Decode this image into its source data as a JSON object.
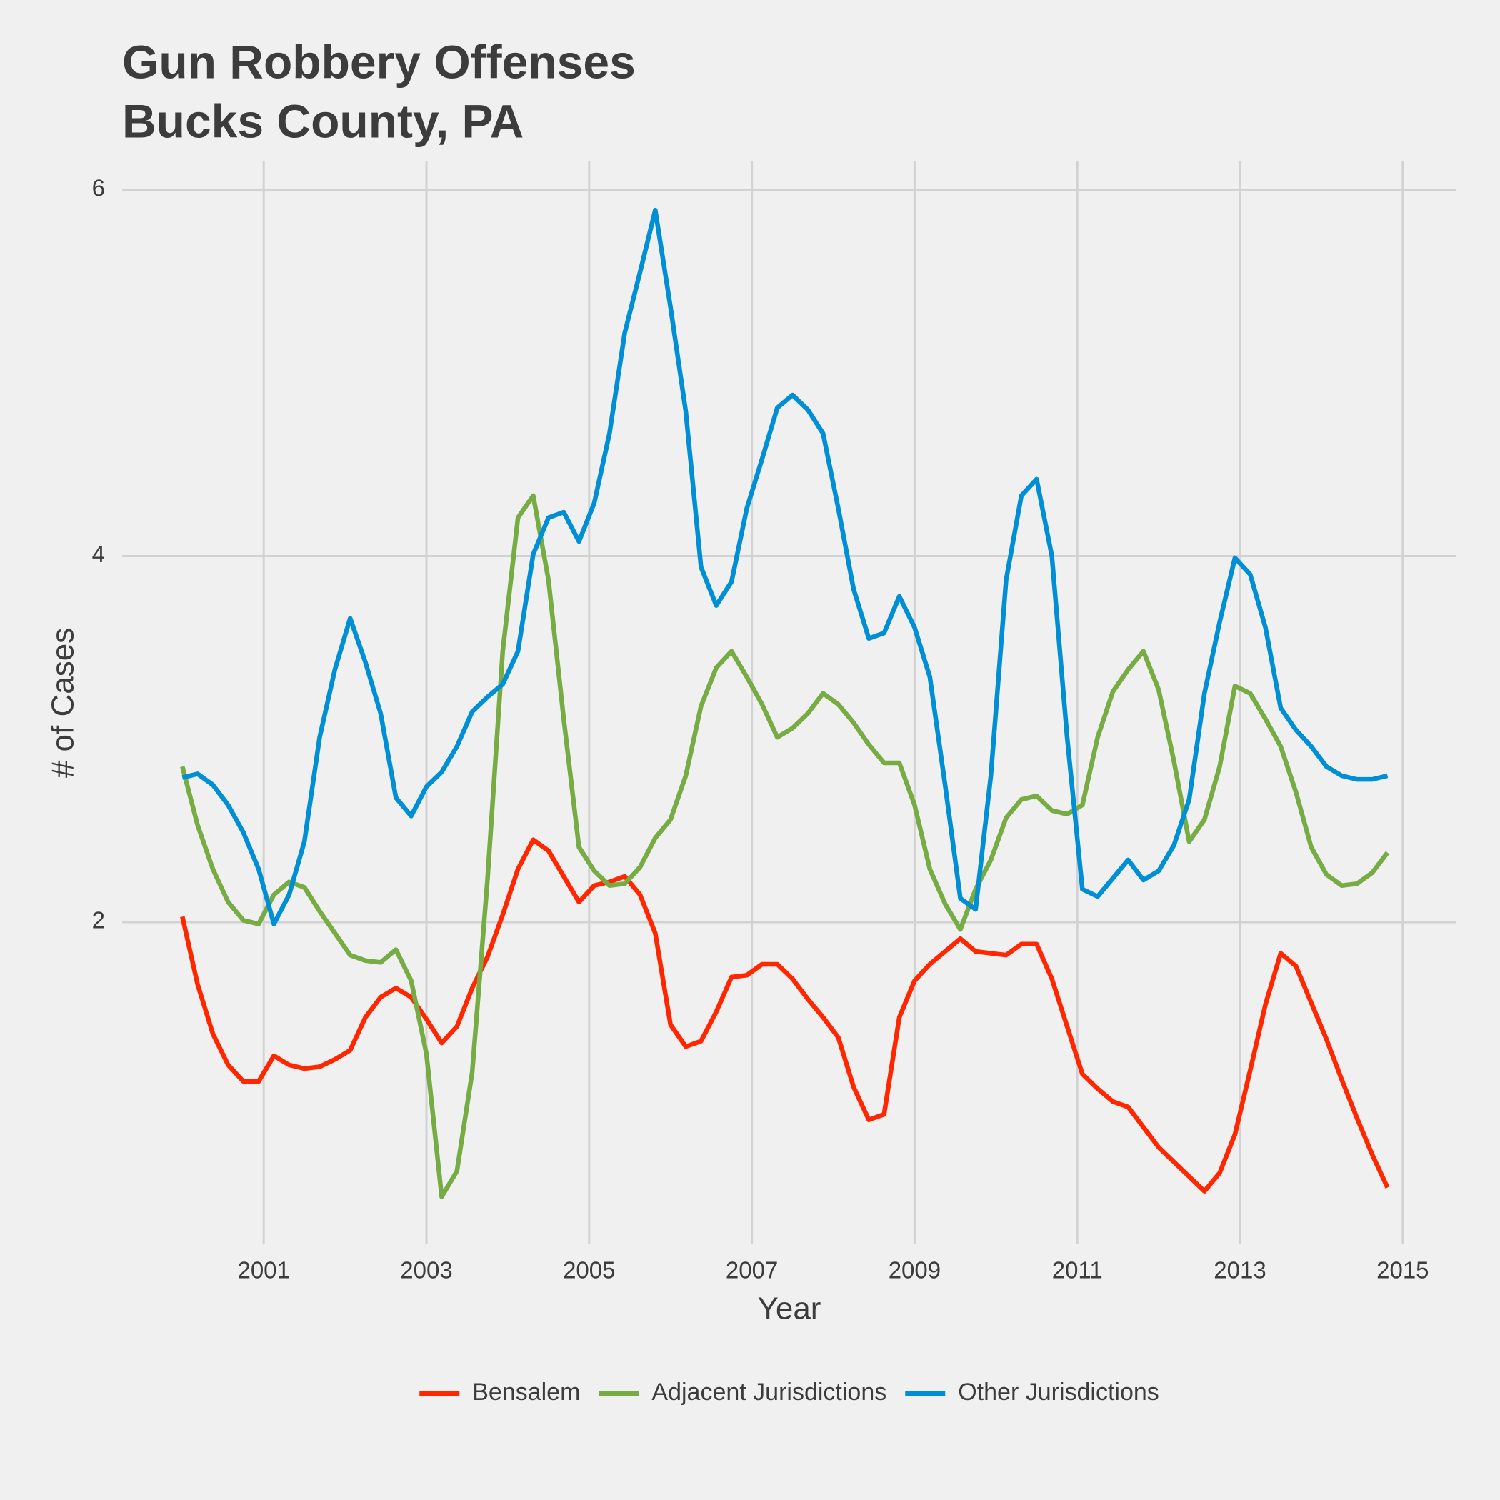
{
  "chart_data": {
    "type": "line",
    "title": "Gun Robbery Offenses",
    "subtitle": "Bucks County, PA",
    "xlabel": "Year",
    "ylabel": "# of Cases",
    "x": [
      2000,
      2000.1875,
      2000.375,
      2000.5625,
      2000.75,
      2000.9375,
      2001.125,
      2001.3125,
      2001.5,
      2001.6875,
      2001.875,
      2002.0625,
      2002.25,
      2002.4375,
      2002.625,
      2002.8125,
      2003,
      2003.1875,
      2003.375,
      2003.5625,
      2003.75,
      2003.9375,
      2004.125,
      2004.3125,
      2004.5,
      2004.6875,
      2004.875,
      2005.0625,
      2005.25,
      2005.4375,
      2005.625,
      2005.8125,
      2006,
      2006.1875,
      2006.375,
      2006.5625,
      2006.75,
      2006.9375,
      2007.125,
      2007.3125,
      2007.5,
      2007.6875,
      2007.875,
      2008.0625,
      2008.25,
      2008.4375,
      2008.625,
      2008.8125,
      2009,
      2009.1875,
      2009.375,
      2009.5625,
      2009.75,
      2009.9375,
      2010.125,
      2010.3125,
      2010.5,
      2010.6875,
      2010.875,
      2011.0625,
      2011.25,
      2011.4375,
      2011.625,
      2011.8125,
      2012,
      2012.1875,
      2012.375,
      2012.5625,
      2012.75,
      2012.9375,
      2013.125,
      2013.3125,
      2013.5,
      2013.6875,
      2013.875,
      2014.0625,
      2014.25,
      2014.4375,
      2014.625,
      2014.8125
    ],
    "series": [
      {
        "name": "Bensalem",
        "color": "#ff2700",
        "values": [
          2.03,
          1.66,
          1.39,
          1.22,
          1.13,
          1.13,
          1.27,
          1.22,
          1.2,
          1.21,
          1.25,
          1.3,
          1.48,
          1.59,
          1.64,
          1.59,
          1.47,
          1.34,
          1.43,
          1.64,
          1.81,
          2.04,
          2.29,
          2.45,
          2.39,
          2.25,
          2.11,
          2.2,
          2.22,
          2.25,
          2.15,
          1.94,
          1.44,
          1.32,
          1.35,
          1.51,
          1.7,
          1.71,
          1.77,
          1.77,
          1.69,
          1.58,
          1.48,
          1.37,
          1.1,
          0.92,
          0.95,
          1.48,
          1.68,
          1.77,
          1.84,
          1.91,
          1.84,
          1.83,
          1.82,
          1.88,
          1.88,
          1.69,
          1.43,
          1.17,
          1.09,
          1.02,
          0.99,
          0.88,
          0.77,
          0.69,
          0.61,
          0.53,
          0.63,
          0.84,
          1.19,
          1.55,
          1.83,
          1.76,
          1.56,
          1.36,
          1.14,
          0.93,
          0.73,
          0.55
        ]
      },
      {
        "name": "Adjacent Jurisdictions",
        "color": "#77ab43",
        "values": [
          2.85,
          2.53,
          2.29,
          2.11,
          2.01,
          1.99,
          2.15,
          2.22,
          2.19,
          2.06,
          1.94,
          1.82,
          1.79,
          1.78,
          1.85,
          1.68,
          1.28,
          0.5,
          0.64,
          1.18,
          2.23,
          3.48,
          4.21,
          4.33,
          3.87,
          3.11,
          2.41,
          2.28,
          2.2,
          2.21,
          2.3,
          2.46,
          2.56,
          2.8,
          3.18,
          3.39,
          3.48,
          3.34,
          3.19,
          3.01,
          3.06,
          3.14,
          3.25,
          3.19,
          3.09,
          2.97,
          2.87,
          2.87,
          2.64,
          2.29,
          2.1,
          1.96,
          2.18,
          2.34,
          2.57,
          2.67,
          2.69,
          2.61,
          2.59,
          2.64,
          3.01,
          3.26,
          3.38,
          3.48,
          3.27,
          2.88,
          2.44,
          2.56,
          2.85,
          3.29,
          3.25,
          3.11,
          2.96,
          2.71,
          2.41,
          2.26,
          2.2,
          2.21,
          2.27,
          2.38
        ]
      },
      {
        "name": "Other Jurisdictions",
        "color": "#008fd5",
        "values": [
          2.79,
          2.81,
          2.75,
          2.64,
          2.49,
          2.29,
          1.99,
          2.15,
          2.44,
          3.01,
          3.38,
          3.66,
          3.42,
          3.14,
          2.68,
          2.58,
          2.74,
          2.82,
          2.96,
          3.15,
          3.23,
          3.3,
          3.48,
          4.01,
          4.21,
          4.24,
          4.08,
          4.29,
          4.67,
          5.22,
          5.55,
          5.89,
          5.36,
          4.79,
          3.94,
          3.73,
          3.86,
          4.26,
          4.53,
          4.81,
          4.88,
          4.8,
          4.67,
          4.26,
          3.82,
          3.55,
          3.58,
          3.78,
          3.61,
          3.34,
          2.75,
          2.13,
          2.07,
          2.8,
          3.87,
          4.33,
          4.42,
          4.0,
          3.01,
          2.18,
          2.14,
          2.24,
          2.34,
          2.23,
          2.28,
          2.42,
          2.67,
          3.25,
          3.64,
          3.99,
          3.9,
          3.61,
          3.17,
          3.05,
          2.96,
          2.85,
          2.8,
          2.78,
          2.78,
          2.8
        ]
      }
    ],
    "xlim": [
      1999.26,
      2015.66
    ],
    "xticks": [
      2001,
      2003,
      2005,
      2007,
      2009,
      2011,
      2013,
      2015
    ],
    "ylim": [
      0.24,
      6.16
    ],
    "yticks": [
      2,
      4,
      6
    ],
    "grid": true,
    "legend": "bottom"
  }
}
